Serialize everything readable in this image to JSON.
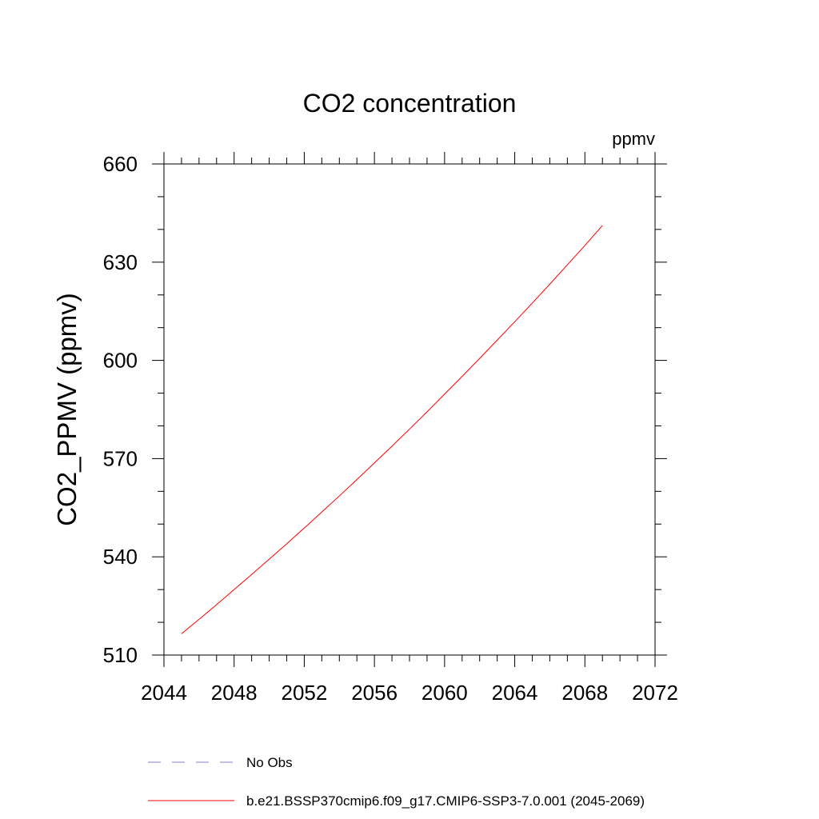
{
  "chart_data": {
    "type": "line",
    "title": "CO2 concentration",
    "units_label": "ppmv",
    "ylabel": "CO2_PPMV  (ppmv)",
    "xlabel": "",
    "xlim": [
      2044,
      2072
    ],
    "ylim": [
      510,
      660
    ],
    "x_ticks": [
      2044,
      2048,
      2052,
      2056,
      2060,
      2064,
      2068,
      2072
    ],
    "y_ticks": [
      510,
      540,
      570,
      600,
      630,
      660
    ],
    "x_minor_step": 1,
    "y_minor_step": 10,
    "grid": false,
    "legend_position": "bottom",
    "series": [
      {
        "name": "No Obs",
        "color": "#8080c0",
        "dash": "dashed",
        "x": [],
        "y": []
      },
      {
        "name": "b.e21.BSSP370cmip6.f09_g17.CMIP6-SSP3-7.0.001 (2045-2069)",
        "color": "#ff0000",
        "dash": "solid",
        "x": [
          2045,
          2046,
          2047,
          2048,
          2049,
          2050,
          2051,
          2052,
          2053,
          2054,
          2055,
          2056,
          2057,
          2058,
          2059,
          2060,
          2061,
          2062,
          2063,
          2064,
          2065,
          2066,
          2067,
          2068,
          2069
        ],
        "y": [
          516.5,
          520.9,
          525.4,
          530.0,
          534.6,
          539.3,
          544.0,
          548.8,
          553.7,
          558.6,
          563.6,
          568.7,
          573.8,
          579.0,
          584.3,
          589.7,
          595.1,
          600.6,
          606.2,
          611.8,
          617.5,
          623.3,
          629.2,
          635.1,
          641.2
        ]
      }
    ]
  }
}
